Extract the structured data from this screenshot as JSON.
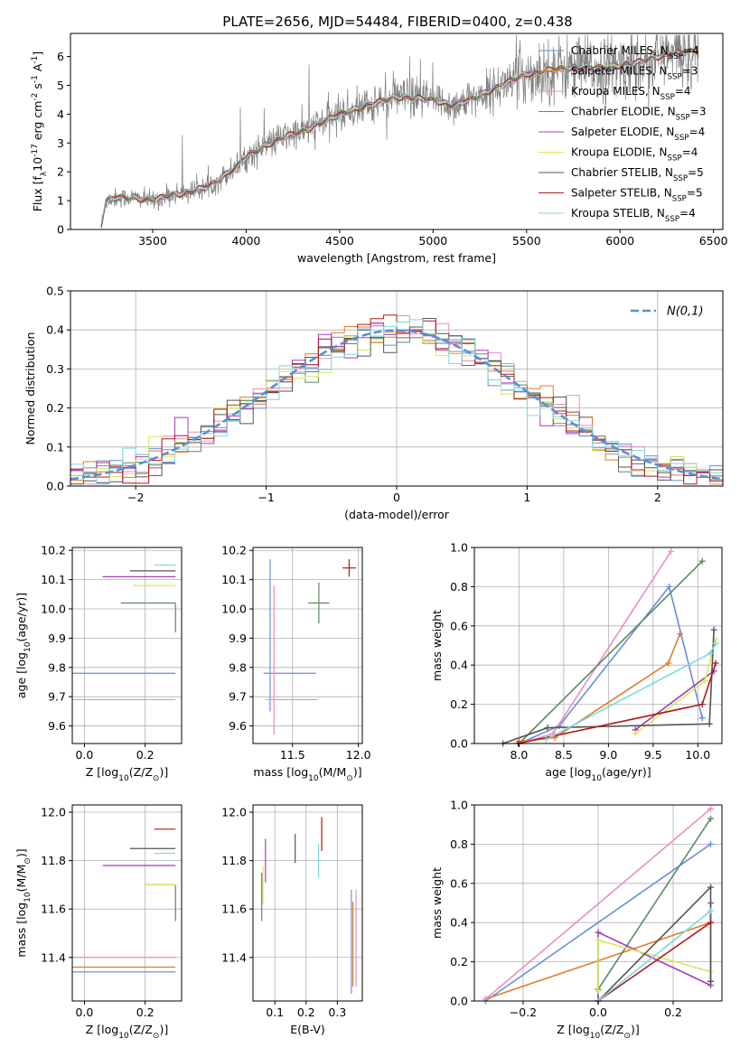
{
  "figure_title": "PLATE=2656, MJD=54484, FIBERID=0400, z=0.438",
  "legend_models": [
    "Chabrier MILES, N$_{SSP}$=4",
    "Salpeter MILES, N$_{SSP}$=3",
    "Kroupa MILES, N$_{SSP}$=4",
    "Chabrier ELODIE, N$_{SSP}$=3",
    "Salpeter ELODIE, N$_{SSP}$=4",
    "Kroupa ELODIE, N$_{SSP}$=4",
    "Chabrier STELIB, N$_{SSP}$=5",
    "Salpeter STELIB, N$_{SSP}$=5",
    "Kroupa STELIB, N$_{SSP}$=4"
  ],
  "model_colors": [
    "#6a8fd6",
    "#e07b25",
    "#e58fc4",
    "#5c8a64",
    "#a83bb8",
    "#d4ea5b",
    "#555555",
    "#b01818",
    "#7fd8e0"
  ],
  "chart_data": [
    {
      "type": "line",
      "name": "spectrum",
      "xlabel": "wavelength [Angstrom, rest frame]",
      "ylabel": "Flux [f$_\\lambda$10$^{-17}$ erg cm$^{-2}$ s$^{-1}$ A$^{-1}$]",
      "xlim": [
        3060,
        6550
      ],
      "ylim": [
        0,
        6.8
      ],
      "xticks": [
        3500,
        4000,
        4500,
        5000,
        5500,
        6000,
        6500
      ],
      "yticks": [
        0,
        1,
        2,
        3,
        4,
        5,
        6
      ],
      "grid": false,
      "legend": "upper right",
      "continuum": {
        "x": [
          3220,
          3250,
          3300,
          3400,
          3500,
          3600,
          3700,
          3800,
          3870,
          3950,
          4000,
          4100,
          4200,
          4300,
          4400,
          4500,
          4600,
          4700,
          4800,
          4900,
          5000,
          5100,
          5200,
          5300,
          5400,
          5500,
          5600,
          5700,
          5800,
          5900,
          6000,
          6100,
          6200,
          6300,
          6400
        ],
        "y": [
          0.0,
          1.0,
          1.1,
          1.1,
          1.0,
          1.2,
          1.3,
          1.5,
          1.8,
          2.2,
          2.5,
          2.9,
          3.2,
          3.4,
          3.7,
          4.0,
          4.2,
          4.4,
          4.6,
          4.55,
          4.5,
          4.3,
          4.5,
          4.8,
          5.1,
          5.4,
          5.5,
          5.6,
          5.6,
          5.6,
          5.7,
          5.8,
          6.0,
          6.1,
          6.2
        ]
      }
    },
    {
      "type": "histogram",
      "name": "residuals",
      "xlabel": "(data-model)/error",
      "ylabel": "Normed distribution",
      "xlim": [
        -2.5,
        2.5
      ],
      "ylim": [
        0,
        0.5
      ],
      "xticks": [
        -2,
        -1,
        0,
        1,
        2
      ],
      "yticks": [
        0.0,
        0.1,
        0.2,
        0.3,
        0.4,
        0.5
      ],
      "grid": true,
      "legend": "upper right",
      "reference_label": "$\\mathcal{N}(0,1)$",
      "reference_color": "#5b8fd6",
      "bin_width": 0.1
    },
    {
      "type": "scatter",
      "name": "age_vs_Z",
      "xlabel": "Z [log$_{10}$(Z/Z$_\\odot$)]",
      "ylabel": "age  [log$_{10}$(age/yr)]",
      "xlim": [
        -0.04,
        0.32
      ],
      "ylim": [
        9.54,
        10.21
      ],
      "xticks": [
        0.0,
        0.2
      ],
      "yticks": [
        9.6,
        9.7,
        9.8,
        9.9,
        10.0,
        10.1,
        10.2
      ],
      "grid": true,
      "points": [
        {
          "x": 0.3,
          "y": 9.78,
          "xerr": [
            0.34,
            0.0
          ],
          "yerr": [
            0.0,
            0.0
          ]
        },
        {
          "x": 0.3,
          "y": 10.14,
          "xerr": [
            0.0,
            0.0
          ],
          "yerr": [
            0.0,
            0.0
          ]
        },
        {
          "x": 0.3,
          "y": 9.69,
          "xerr": [
            0.34,
            0.0
          ],
          "yerr": [
            0.0,
            0.0
          ]
        },
        {
          "x": 0.3,
          "y": 10.02,
          "xerr": [
            0.18,
            0.0
          ],
          "yerr": [
            0.1,
            0.0
          ]
        },
        {
          "x": 0.3,
          "y": 10.11,
          "xerr": [
            0.24,
            0.0
          ],
          "yerr": [
            0.0,
            0.0
          ]
        },
        {
          "x": 0.3,
          "y": 10.08,
          "xerr": [
            0.14,
            0.0
          ],
          "yerr": [
            0.0,
            0.0
          ]
        },
        {
          "x": 0.3,
          "y": 10.13,
          "xerr": [
            0.15,
            0.0
          ],
          "yerr": [
            0.0,
            0.0
          ]
        },
        {
          "x": 0.3,
          "y": 10.14,
          "xerr": [
            0.0,
            0.0
          ],
          "yerr": [
            0.0,
            0.0
          ]
        },
        {
          "x": 0.3,
          "y": 10.15,
          "xerr": [
            0.07,
            0.0
          ],
          "yerr": [
            0.0,
            0.0
          ]
        }
      ]
    },
    {
      "type": "scatter",
      "name": "age_vs_mass",
      "xlabel": "mass [log$_{10}$(M/M$_\\odot$)]",
      "xlim": [
        11.2,
        12.03
      ],
      "ylim": [
        9.54,
        10.21
      ],
      "xticks": [
        11.5,
        12.0
      ],
      "yticks": [
        9.6,
        9.7,
        9.8,
        9.9,
        10.0,
        10.1,
        10.2
      ],
      "grid": true,
      "points": [
        {
          "x": 11.33,
          "y": 9.78,
          "xerr": [
            0.05,
            0.35
          ],
          "yerr": [
            0.13,
            0.39
          ]
        },
        {
          "x": 11.4,
          "y": 10.14,
          "xerr": [
            0.0,
            0.0
          ],
          "yerr": [
            0.0,
            0.0
          ]
        },
        {
          "x": 11.36,
          "y": 9.69,
          "xerr": [
            0.06,
            0.33
          ],
          "yerr": [
            0.12,
            0.39
          ]
        },
        {
          "x": 11.7,
          "y": 10.02,
          "xerr": [
            0.08,
            0.08
          ],
          "yerr": [
            0.07,
            0.07
          ]
        },
        {
          "x": 11.76,
          "y": 10.11,
          "xerr": [
            0.0,
            0.0
          ],
          "yerr": [
            0.0,
            0.0
          ]
        },
        {
          "x": 11.7,
          "y": 10.08,
          "xerr": [
            0.0,
            0.0
          ],
          "yerr": [
            0.0,
            0.0
          ]
        },
        {
          "x": 11.85,
          "y": 10.13,
          "xerr": [
            0.0,
            0.0
          ],
          "yerr": [
            0.0,
            0.0
          ]
        },
        {
          "x": 11.93,
          "y": 10.14,
          "xerr": [
            0.05,
            0.05
          ],
          "yerr": [
            0.03,
            0.03
          ]
        },
        {
          "x": 11.84,
          "y": 10.15,
          "xerr": [
            0.0,
            0.0
          ],
          "yerr": [
            0.0,
            0.0
          ]
        }
      ]
    },
    {
      "type": "line",
      "name": "mass_weight_vs_age",
      "xlabel": "age  [log$_{10}$(age/yr)]",
      "ylabel": "mass weight",
      "xlim": [
        7.5,
        10.27
      ],
      "ylim": [
        0.0,
        1.0
      ],
      "xticks": [
        8.0,
        8.5,
        9.0,
        9.5,
        10.0
      ],
      "yticks": [
        0.0,
        0.2,
        0.4,
        0.6,
        0.8,
        1.0
      ],
      "grid": true,
      "series": [
        {
          "x": [
            8.0,
            8.45,
            9.68,
            10.05
          ],
          "y": [
            0.0,
            0.09,
            0.8,
            0.13
          ]
        },
        {
          "x": [
            8.0,
            8.4,
            9.67,
            9.8
          ],
          "y": [
            0.01,
            0.03,
            0.41,
            0.56
          ]
        },
        {
          "x": [
            8.0,
            8.38,
            9.7
          ],
          "y": [
            0.0,
            0.05,
            0.98
          ]
        },
        {
          "x": [
            8.0,
            10.05
          ],
          "y": [
            0.0,
            0.93
          ]
        },
        {
          "x": [
            9.3,
            10.18
          ],
          "y": [
            0.07,
            0.37
          ]
        },
        {
          "x": [
            9.3,
            10.08,
            10.2
          ],
          "y": [
            0.05,
            0.32,
            0.53
          ]
        },
        {
          "x": [
            7.82,
            8.32,
            10.13,
            10.18
          ],
          "y": [
            0.0,
            0.08,
            0.1,
            0.58
          ]
        },
        {
          "x": [
            7.99,
            10.05,
            10.2
          ],
          "y": [
            0.0,
            0.2,
            0.41
          ]
        },
        {
          "x": [
            8.3,
            10.14,
            10.2
          ],
          "y": [
            0.02,
            0.46,
            0.51
          ]
        }
      ]
    },
    {
      "type": "scatter",
      "name": "mass_vs_Z",
      "xlabel": "Z [log$_{10}$(Z/Z$_\\odot$)]",
      "ylabel": "mass [log$_{10}$(M/M$_\\odot$)]",
      "xlim": [
        -0.04,
        0.32
      ],
      "ylim": [
        11.22,
        12.03
      ],
      "xticks": [
        0.0,
        0.2
      ],
      "yticks": [
        11.4,
        11.6,
        11.8,
        12.0
      ],
      "grid": true,
      "points": [
        {
          "x": 0.3,
          "y": 11.34,
          "xerr": [
            0.34,
            0.0
          ],
          "yerr": [
            0.0,
            0.0
          ]
        },
        {
          "x": 0.3,
          "y": 11.36,
          "xerr": [
            0.34,
            0.0
          ],
          "yerr": [
            0.0,
            0.0
          ]
        },
        {
          "x": 0.3,
          "y": 11.4,
          "xerr": [
            0.34,
            0.0
          ],
          "yerr": [
            0.0,
            0.0
          ]
        },
        {
          "x": 0.3,
          "y": 11.7,
          "xerr": [
            0.1,
            0.0
          ],
          "yerr": [
            0.15,
            0.0
          ]
        },
        {
          "x": 0.3,
          "y": 11.78,
          "xerr": [
            0.24,
            0.0
          ],
          "yerr": [
            0.0,
            0.0
          ]
        },
        {
          "x": 0.3,
          "y": 11.7,
          "xerr": [
            0.1,
            0.0
          ],
          "yerr": [
            0.0,
            0.0
          ]
        },
        {
          "x": 0.3,
          "y": 11.85,
          "xerr": [
            0.15,
            0.0
          ],
          "yerr": [
            0.0,
            0.0
          ]
        },
        {
          "x": 0.3,
          "y": 11.93,
          "xerr": [
            0.07,
            0.0
          ],
          "yerr": [
            0.0,
            0.0
          ]
        },
        {
          "x": 0.3,
          "y": 11.83,
          "xerr": [
            0.07,
            0.0
          ],
          "yerr": [
            0.0,
            0.0
          ]
        }
      ]
    },
    {
      "type": "scatter",
      "name": "mass_vs_EBV",
      "xlabel": "E(B-V)",
      "xlim": [
        0.03,
        0.38
      ],
      "ylim": [
        11.22,
        12.03
      ],
      "xticks": [
        0.1,
        0.2,
        0.3
      ],
      "yticks": [
        11.4,
        11.6,
        11.8,
        12.0
      ],
      "grid": true,
      "points": [
        {
          "x": 0.345,
          "y": 11.45,
          "xerr": [
            0.0,
            0.0
          ],
          "yerr": [
            0.2,
            0.23
          ]
        },
        {
          "x": 0.35,
          "y": 11.43,
          "xerr": [
            0.0,
            0.0
          ],
          "yerr": [
            0.15,
            0.2
          ]
        },
        {
          "x": 0.36,
          "y": 11.48,
          "xerr": [
            0.0,
            0.0
          ],
          "yerr": [
            0.2,
            0.2
          ]
        },
        {
          "x": 0.058,
          "y": 11.65,
          "xerr": [
            0.0,
            0.0
          ],
          "yerr": [
            0.1,
            0.1
          ]
        },
        {
          "x": 0.07,
          "y": 11.8,
          "xerr": [
            0.0,
            0.0
          ],
          "yerr": [
            0.09,
            0.09
          ]
        },
        {
          "x": 0.062,
          "y": 11.7,
          "xerr": [
            0.0,
            0.0
          ],
          "yerr": [
            0.08,
            0.08
          ]
        },
        {
          "x": 0.165,
          "y": 11.85,
          "xerr": [
            0.0,
            0.0
          ],
          "yerr": [
            0.06,
            0.06
          ]
        },
        {
          "x": 0.25,
          "y": 11.91,
          "xerr": [
            0.0,
            0.0
          ],
          "yerr": [
            0.07,
            0.07
          ]
        },
        {
          "x": 0.24,
          "y": 11.8,
          "xerr": [
            0.0,
            0.0
          ],
          "yerr": [
            0.07,
            0.07
          ]
        }
      ]
    },
    {
      "type": "line",
      "name": "mass_weight_vs_Z",
      "xlabel": "Z [log$_{10}$(Z/Z$_\\odot$)]",
      "ylabel": "mass weight",
      "xlim": [
        -0.33,
        0.33
      ],
      "ylim": [
        0.0,
        1.0
      ],
      "xticks": [
        -0.2,
        0.0,
        0.2
      ],
      "yticks": [
        0.0,
        0.2,
        0.4,
        0.6,
        0.8,
        1.0
      ],
      "grid": true,
      "series": [
        {
          "x": [
            -0.3,
            0.3
          ],
          "y": [
            0.0,
            0.8
          ]
        },
        {
          "x": [
            -0.3,
            0.3
          ],
          "y": [
            0.01,
            0.4
          ]
        },
        {
          "x": [
            -0.3,
            0.3
          ],
          "y": [
            0.01,
            0.98
          ]
        },
        {
          "x": [
            0.0,
            0.0,
            0.3
          ],
          "y": [
            0.0,
            0.06,
            0.93
          ]
        },
        {
          "x": [
            0.0,
            0.0,
            0.3,
            0.3
          ],
          "y": [
            0.0,
            0.35,
            0.08,
            0.5
          ]
        },
        {
          "x": [
            0.0,
            0.0,
            0.3
          ],
          "y": [
            0.05,
            0.31,
            0.15
          ]
        },
        {
          "x": [
            0.0,
            0.3,
            0.3
          ],
          "y": [
            0.0,
            0.58,
            0.1
          ]
        },
        {
          "x": [
            0.0,
            0.3
          ],
          "y": [
            0.0,
            0.4
          ]
        },
        {
          "x": [
            0.0,
            0.3
          ],
          "y": [
            0.0,
            0.46
          ]
        }
      ]
    }
  ]
}
